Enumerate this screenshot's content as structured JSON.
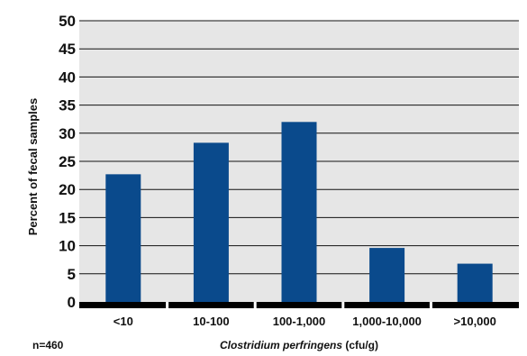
{
  "chart_data": {
    "type": "bar",
    "categories": [
      "<10",
      "10-100",
      "100-1,000",
      "1,000-10,000",
      ">10,000"
    ],
    "values": [
      22.7,
      28.3,
      32.0,
      9.6,
      6.8
    ],
    "xlabel_italic": "Clostridium perfringens",
    "xlabel_rest": " (cfu/g)",
    "ylabel": "Percent of fecal samples",
    "ylim": [
      0,
      50
    ],
    "yticks": [
      0,
      5,
      10,
      15,
      20,
      25,
      30,
      35,
      40,
      45,
      50
    ],
    "grid": true,
    "note": "n=460"
  },
  "colors": {
    "bar": "#0a4a8c",
    "plot_background": "#e6e6e6",
    "gridline": "#111111",
    "baseline": "#000000"
  }
}
